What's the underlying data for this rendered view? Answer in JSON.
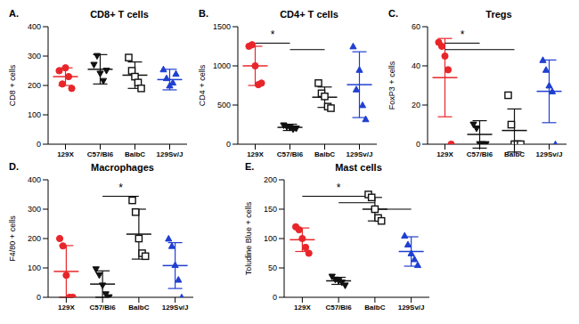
{
  "chart_data": [
    {
      "type": "scatter",
      "panel_label": "A.",
      "title": "CD8+ T cells",
      "y_label": "CD8 + cells",
      "categories": [
        "129X",
        "C57/Bl6",
        "BalbC",
        "129Sv/J"
      ],
      "colors": [
        "#e8262a",
        "#111111",
        "#111111",
        "#1f3fd1"
      ],
      "markers": [
        "circle",
        "triangle-down",
        "open_square",
        "triangle"
      ],
      "points": [
        [
          250,
          205,
          260,
          230,
          190
        ],
        [
          270,
          300,
          240,
          215,
          250
        ],
        [
          295,
          250,
          230,
          210,
          190
        ],
        [
          255,
          225,
          200,
          210,
          240
        ]
      ],
      "mean": [
        230,
        255,
        235,
        220
      ],
      "sd": [
        30,
        50,
        45,
        35
      ],
      "ylim": [
        0,
        400
      ],
      "yticks": [
        0,
        100,
        200,
        300,
        400
      ]
    },
    {
      "type": "scatter",
      "panel_label": "B.",
      "title": "CD4+ T cells",
      "y_label": "CD4 + cells",
      "categories": [
        "129X",
        "C57/Bl6",
        "BalbC",
        "129Sv/J"
      ],
      "colors": [
        "#e8262a",
        "#111111",
        "#111111",
        "#1f3fd1"
      ],
      "markers": [
        "circle",
        "triangle-down",
        "open_square",
        "triangle"
      ],
      "points": [
        [
          1250,
          1270,
          1000,
          760,
          780
        ],
        [
          240,
          220,
          210,
          190,
          200
        ],
        [
          780,
          650,
          610,
          480,
          460
        ],
        [
          1250,
          700,
          950,
          500,
          320
        ]
      ],
      "mean": [
        1000,
        215,
        600,
        760
      ],
      "sd": [
        250,
        40,
        130,
        420
      ],
      "ylim": [
        0,
        1500
      ],
      "yticks": [
        0,
        500,
        1000,
        1500
      ],
      "brackets": [
        [
          0,
          1
        ],
        [
          1,
          2
        ]
      ],
      "annotation": "*"
    },
    {
      "type": "scatter",
      "panel_label": "C.",
      "title": "Tregs",
      "y_label": "FoxP3 + cells",
      "categories": [
        "129X",
        "C57/Bl6",
        "BalbC",
        "129Sv/J"
      ],
      "colors": [
        "#e8262a",
        "#111111",
        "#111111",
        "#1f3fd1"
      ],
      "markers": [
        "circle",
        "triangle-down",
        "open_square",
        "triangle"
      ],
      "points": [
        [
          52,
          50,
          45,
          38,
          0
        ],
        [
          10,
          8,
          0,
          0,
          0
        ],
        [
          25,
          10,
          0,
          0,
          0
        ],
        [
          43,
          38,
          30,
          27,
          0
        ]
      ],
      "mean": [
        34,
        5,
        7,
        27
      ],
      "sd": [
        20,
        7,
        11,
        16
      ],
      "ylim": [
        0,
        60
      ],
      "yticks": [
        0,
        20,
        40,
        60
      ],
      "brackets": [
        [
          0,
          1
        ],
        [
          0,
          2
        ]
      ],
      "annotation": "*"
    },
    {
      "type": "scatter",
      "panel_label": "D.",
      "title": "Macrophages",
      "y_label": "F4/80 + cells",
      "categories": [
        "129X",
        "C57/Bl6",
        "BalbC",
        "129Sv/J"
      ],
      "colors": [
        "#e8262a",
        "#111111",
        "#111111",
        "#1f3fd1"
      ],
      "markers": [
        "circle",
        "triangle-down",
        "open_square",
        "triangle"
      ],
      "points": [
        [
          200,
          175,
          75,
          0,
          0
        ],
        [
          95,
          75,
          40,
          10,
          0
        ],
        [
          330,
          290,
          200,
          150,
          140
        ],
        [
          200,
          175,
          110,
          60,
          0
        ]
      ],
      "mean": [
        88,
        45,
        215,
        108
      ],
      "sd": [
        88,
        45,
        85,
        78
      ],
      "ylim": [
        0,
        400
      ],
      "yticks": [
        0,
        100,
        200,
        300,
        400
      ],
      "brackets": [
        [
          1,
          2
        ]
      ],
      "annotation": "*"
    },
    {
      "type": "scatter",
      "panel_label": "E.",
      "title": "Mast cells",
      "y_label": "Toludine Blue + cells",
      "categories": [
        "129X",
        "C57/Bl6",
        "BalbC",
        "129Sv/J"
      ],
      "colors": [
        "#e8262a",
        "#111111",
        "#111111",
        "#1f3fd1"
      ],
      "markers": [
        "circle",
        "triangle-down",
        "open_square",
        "triangle"
      ],
      "points": [
        [
          120,
          115,
          100,
          85,
          75
        ],
        [
          35,
          30,
          28,
          25,
          20
        ],
        [
          175,
          170,
          150,
          135,
          130
        ],
        [
          105,
          90,
          75,
          65,
          55
        ]
      ],
      "mean": [
        98,
        28,
        150,
        78
      ],
      "sd": [
        20,
        6,
        20,
        25
      ],
      "ylim": [
        0,
        200
      ],
      "yticks": [
        0,
        50,
        100,
        150,
        200
      ],
      "brackets": [
        [
          0,
          2
        ],
        [
          1,
          2
        ],
        [
          2,
          3
        ]
      ],
      "annotation": "*"
    }
  ]
}
